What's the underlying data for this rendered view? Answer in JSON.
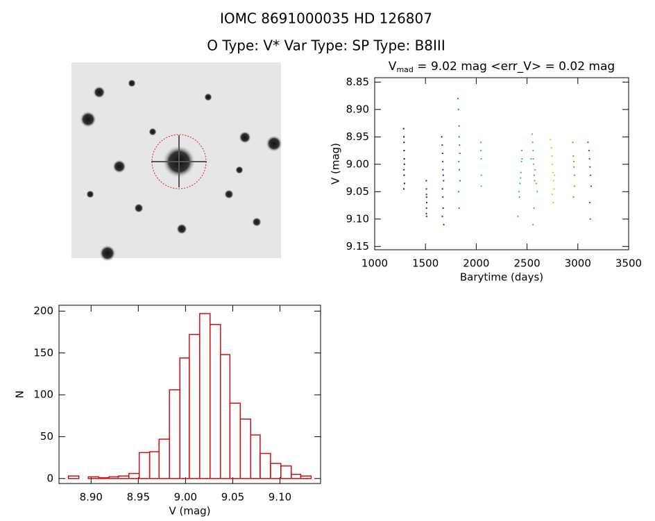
{
  "header": {
    "line1": "IOMC 8691000035    HD 126807",
    "line2": "O Type: V*  Var Type:    SP Type: B8III"
  },
  "chart_data": [
    {
      "type": "scatter",
      "title": {
        "main": "V",
        "sub": "mad",
        "rest": " = 9.02 mag  <err_V> = 0.02 mag"
      },
      "x_label": "Barytime (days)",
      "y_label": "V (mag)",
      "xlim": [
        1000,
        3500
      ],
      "ylim": [
        8.842,
        9.156
      ],
      "y_reversed": true,
      "xticks": [
        1000,
        1500,
        2000,
        2500,
        3000,
        3500
      ],
      "yticks": [
        8.85,
        {
          "value": 8.9,
          "label": "8.90"
        },
        8.95,
        {
          "value": 9.0,
          "label": "9.00"
        },
        9.05,
        {
          "value": 9.1,
          "label": "9.10"
        },
        9.15
      ],
      "series": [
        {
          "color": "#3a0050",
          "x": [
            1285,
            1287,
            1289,
            1290,
            1291,
            1292,
            1288,
            1290,
            1293,
            1286
          ],
          "values": [
            8.935,
            8.95,
            8.96,
            8.975,
            8.99,
            9.0,
            9.01,
            9.02,
            9.035,
            9.045
          ]
        },
        {
          "color": "#4a10a0",
          "x": [
            1508,
            1509,
            1510,
            1511,
            1512,
            1510,
            1509,
            1511
          ],
          "values": [
            9.03,
            9.045,
            9.055,
            9.06,
            9.07,
            9.08,
            9.09,
            9.095
          ]
        },
        {
          "color": "#3020c0",
          "x": [
            1660,
            1665,
            1668,
            1670,
            1672,
            1675,
            1678,
            1668,
            1671,
            1674,
            1666,
            1680
          ],
          "values": [
            8.95,
            8.965,
            8.98,
            8.995,
            9.01,
            9.02,
            9.03,
            9.045,
            9.06,
            9.08,
            9.095,
            9.11
          ]
        },
        {
          "color": "#0a8ae0",
          "x": [
            1820,
            1825,
            1830,
            1832,
            1835,
            1838,
            1828,
            1833,
            1840,
            1826,
            1831
          ],
          "values": [
            8.88,
            8.9,
            8.93,
            8.95,
            8.965,
            8.98,
            8.995,
            9.01,
            9.03,
            9.05,
            9.08
          ]
        },
        {
          "color": "#00c8e6",
          "x": [
            2045,
            2046,
            2048,
            2050,
            2049
          ],
          "values": [
            8.96,
            8.975,
            8.99,
            9.02,
            9.04
          ]
        },
        {
          "color": "#00d0a8",
          "x": [
            2410,
            2420,
            2430,
            2440,
            2445,
            2448,
            2450,
            2436,
            2425
          ],
          "values": [
            9.095,
            9.05,
            9.035,
            9.015,
            8.995,
            8.975,
            8.99,
            9.025,
            9.06
          ]
        },
        {
          "color": "#20e020",
          "x": [
            2540,
            2550,
            2555,
            2560,
            2562,
            2565,
            2570,
            2575,
            2580,
            2590,
            2600,
            2568,
            2558
          ],
          "values": [
            8.99,
            8.945,
            8.96,
            8.975,
            8.99,
            9.0,
            9.02,
            9.03,
            9.01,
            9.035,
            9.05,
            9.08,
            9.11
          ]
        },
        {
          "color": "#e0d000",
          "x": [
            2730,
            2740,
            2745,
            2750,
            2755,
            2760,
            2765,
            2770,
            2748,
            2758
          ],
          "values": [
            8.955,
            8.97,
            8.985,
            9.0,
            9.015,
            9.03,
            9.045,
            9.02,
            9.055,
            9.07
          ]
        },
        {
          "color": "#f07000",
          "x": [
            2950,
            2955,
            2960,
            2962,
            2965,
            2968,
            2958
          ],
          "values": [
            8.96,
            8.985,
            8.995,
            9.005,
            9.02,
            9.04,
            9.06
          ]
        },
        {
          "color": "#d02020",
          "x": [
            3100,
            3110,
            3115,
            3120,
            3125,
            3130,
            3118,
            3122
          ],
          "values": [
            8.96,
            8.975,
            8.99,
            9.005,
            9.02,
            9.04,
            9.07,
            9.1
          ]
        }
      ]
    },
    {
      "type": "histogram",
      "x_label": "V (mag)",
      "y_label": "N",
      "color": "#d01010",
      "xlim": [
        8.866,
        9.143
      ],
      "ylim": [
        -6,
        207
      ],
      "xticks": [
        {
          "value": 8.9,
          "label": "8.90"
        },
        8.95,
        {
          "value": 9.0,
          "label": "9.00"
        },
        9.05,
        {
          "value": 9.1,
          "label": "9.10"
        }
      ],
      "yticks": [
        0,
        50,
        100,
        150,
        200
      ],
      "bins": [
        8.876,
        8.887,
        8.897,
        8.908,
        8.919,
        8.929,
        8.94,
        8.951,
        8.962,
        8.972,
        8.983,
        8.994,
        9.004,
        9.015,
        9.026,
        9.037,
        9.047,
        9.058,
        9.069,
        9.079,
        9.09,
        9.101,
        9.112,
        9.122,
        9.133
      ],
      "values": [
        3,
        0,
        2,
        1,
        2,
        3,
        6,
        31,
        32,
        47,
        106,
        144,
        172,
        197,
        184,
        148,
        90,
        71,
        52,
        30,
        18,
        15,
        5,
        3
      ]
    }
  ]
}
